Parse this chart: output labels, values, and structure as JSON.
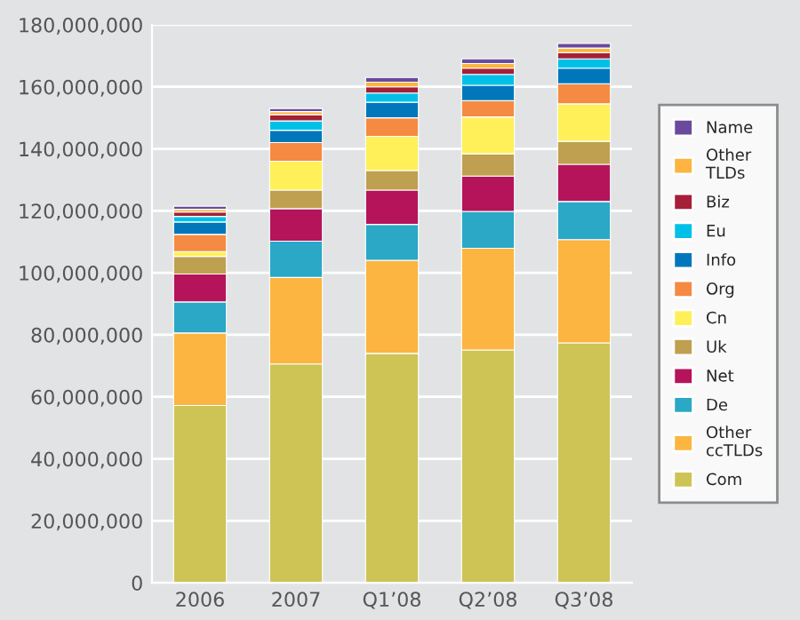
{
  "chart_data": {
    "type": "bar",
    "stacked": true,
    "categories": [
      "2006",
      "2007",
      "Q1’08",
      "Q2’08",
      "Q3’08"
    ],
    "series": [
      {
        "name": "Com",
        "color": "#cdc455",
        "values": [
          57200000,
          70600000,
          74000000,
          75100000,
          77400000
        ]
      },
      {
        "name": "Other ccTLDs",
        "color": "#fbb540",
        "values": [
          23400000,
          27900000,
          30000000,
          32800000,
          33300000
        ]
      },
      {
        "name": "De",
        "color": "#2aa8c6",
        "values": [
          10000000,
          11700000,
          11600000,
          11900000,
          12300000
        ]
      },
      {
        "name": "Net",
        "color": "#b5135a",
        "values": [
          9000000,
          10500000,
          11100000,
          11400000,
          12000000
        ]
      },
      {
        "name": "Uk",
        "color": "#bfa050",
        "values": [
          5700000,
          6000000,
          6300000,
          7200000,
          7400000
        ]
      },
      {
        "name": "Cn",
        "color": "#fff05a",
        "values": [
          1500000,
          9300000,
          11000000,
          11900000,
          12100000
        ]
      },
      {
        "name": "Org",
        "color": "#f58a42",
        "values": [
          5600000,
          6000000,
          6000000,
          5200000,
          6500000
        ]
      },
      {
        "name": "Info",
        "color": "#0077bb",
        "values": [
          4000000,
          4000000,
          5000000,
          5000000,
          5000000
        ]
      },
      {
        "name": "Eu",
        "color": "#00c0e8",
        "values": [
          1800000,
          3000000,
          3000000,
          3500000,
          3000000
        ]
      },
      {
        "name": "Biz",
        "color": "#a51f36",
        "values": [
          1400000,
          2000000,
          2000000,
          2000000,
          2000000
        ]
      },
      {
        "name": "Other TLDs",
        "color": "#fbb540",
        "values": [
          900000,
          1000000,
          1500000,
          1500000,
          1500000
        ]
      },
      {
        "name": "Name",
        "color": "#6a4a9c",
        "values": [
          1000000,
          1000000,
          1500000,
          1500000,
          1500000
        ]
      }
    ],
    "ylim": [
      0,
      180000000
    ],
    "yticks": [
      0,
      {
        "value": 20000000,
        "label": "20,000,000"
      },
      {
        "value": 40000000,
        "label": "40,000,000"
      },
      {
        "value": 60000000,
        "label": "60,000,000"
      },
      {
        "value": 80000000,
        "label": "80,000,000"
      },
      {
        "value": 100000000,
        "label": "100,000,000"
      },
      {
        "value": 120000000,
        "label": "120,000,000"
      },
      {
        "value": 140000000,
        "label": "140,000,000"
      },
      {
        "value": 160000000,
        "label": "160,000,000"
      },
      {
        "value": 180000000,
        "label": "180,000,000"
      }
    ],
    "grid": "y",
    "legend": "right"
  }
}
